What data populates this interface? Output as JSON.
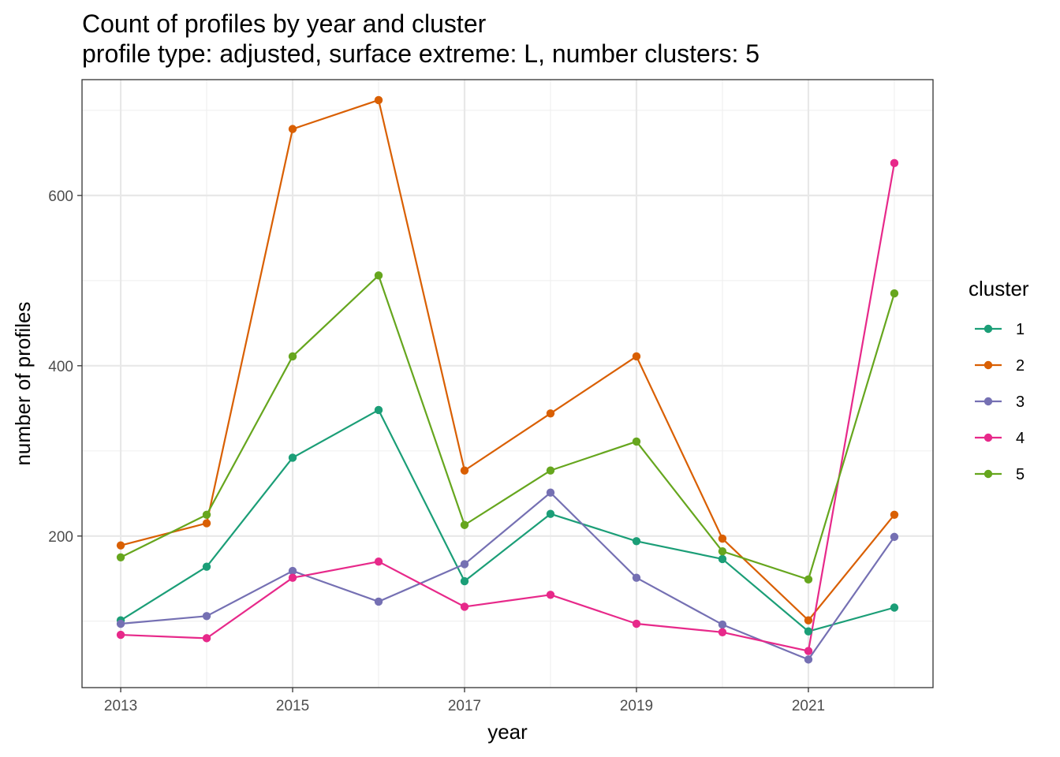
{
  "chart_data": {
    "type": "line",
    "title": "Count of profiles by year and cluster",
    "subtitle": "profile type: adjusted, surface extreme: L, number clusters: 5",
    "xlabel": "year",
    "ylabel": "number of profiles",
    "x": [
      2013,
      2014,
      2015,
      2016,
      2017,
      2018,
      2019,
      2020,
      2021,
      2022
    ],
    "xlim": [
      2012.55,
      2022.45
    ],
    "ylim": [
      22,
      736
    ],
    "xticks": [
      2013,
      2015,
      2017,
      2019,
      2021
    ],
    "xtick_labels": [
      "2013",
      "2015",
      "2017",
      "2019",
      "2021"
    ],
    "xminor": [
      2014,
      2016,
      2018,
      2020,
      2022
    ],
    "yticks": [
      200,
      400,
      600
    ],
    "ytick_labels": [
      "200",
      "400",
      "600"
    ],
    "yminor": [
      100,
      300,
      500,
      700
    ],
    "grid": true,
    "legend": {
      "title": "cluster",
      "position": "right"
    },
    "series": [
      {
        "name": "1",
        "color": "#1B9E77",
        "values": [
          101,
          164,
          292,
          348,
          147,
          226,
          194,
          173,
          88,
          116
        ]
      },
      {
        "name": "2",
        "color": "#D95F02",
        "values": [
          189,
          215,
          678,
          712,
          277,
          344,
          411,
          197,
          101,
          225
        ]
      },
      {
        "name": "3",
        "color": "#7570B3",
        "values": [
          97,
          106,
          159,
          123,
          167,
          251,
          151,
          96,
          55,
          199
        ]
      },
      {
        "name": "4",
        "color": "#E7298A",
        "values": [
          84,
          80,
          151,
          170,
          117,
          131,
          97,
          87,
          65,
          638
        ]
      },
      {
        "name": "5",
        "color": "#66A61E",
        "values": [
          175,
          225,
          411,
          506,
          213,
          277,
          311,
          182,
          149,
          485
        ]
      }
    ]
  }
}
